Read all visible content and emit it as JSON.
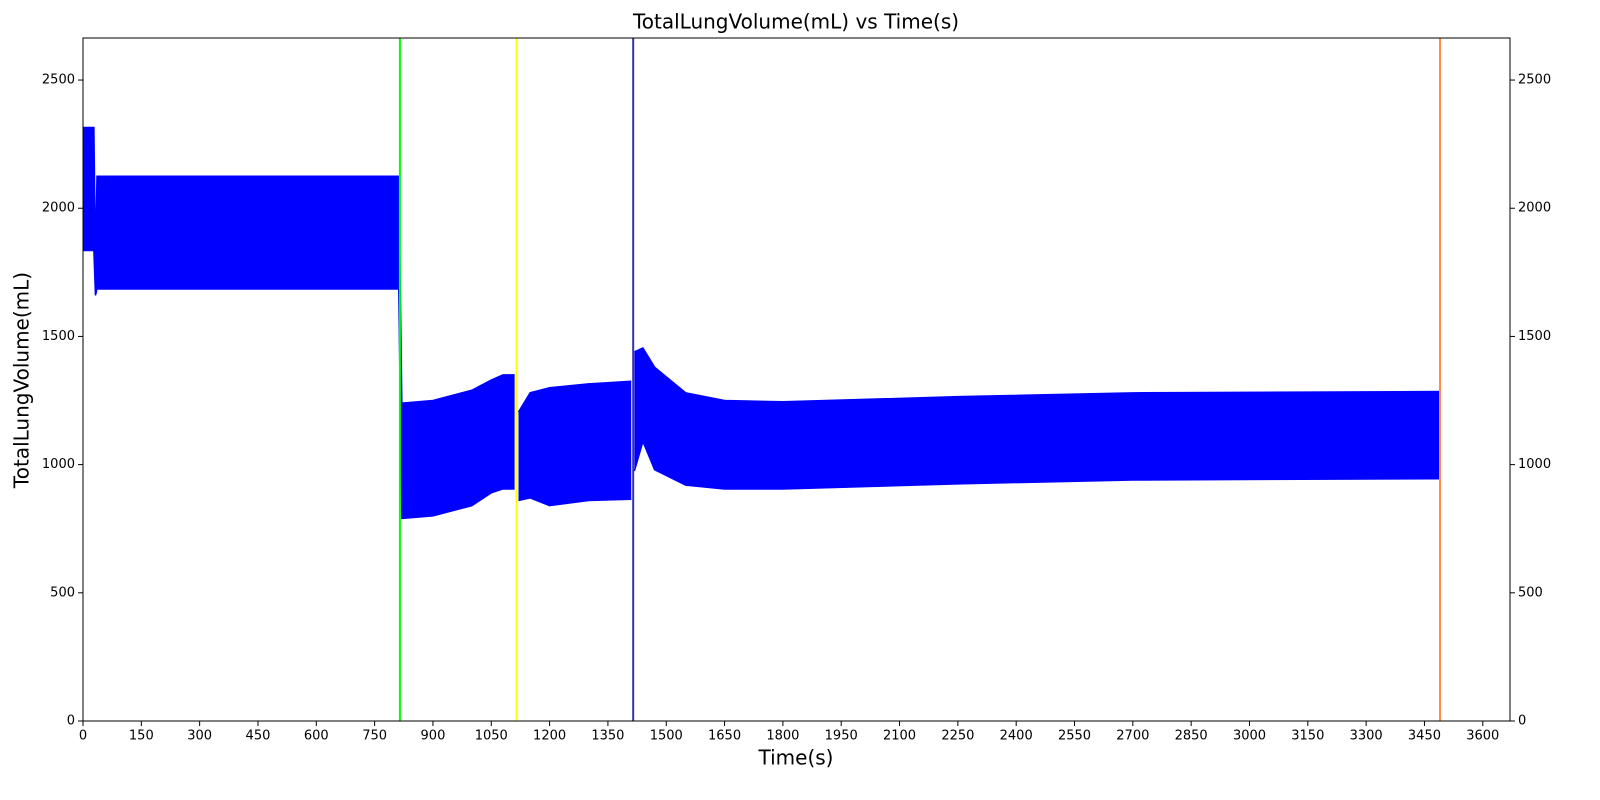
{
  "chart_data": {
    "type": "band",
    "title": "TotalLungVolume(mL) vs Time(s)",
    "x_label": "Time(s)",
    "y_label": "TotalLungVolume(mL)",
    "x": [
      0,
      28,
      32,
      36,
      812,
      820,
      900,
      1000,
      1050,
      1080,
      1110,
      1115,
      1120,
      1150,
      1200,
      1300,
      1410,
      1415,
      1418,
      1440,
      1470,
      1550,
      1650,
      1800,
      2250,
      2700,
      3490
    ],
    "series": [
      {
        "color": "#0000ff",
        "values": [
          2315,
          2315,
          1800,
          2125,
          2125,
          1240,
          1250,
          1290,
          1330,
          1350,
          1350,
          null,
          1205,
          1280,
          1300,
          1315,
          1325,
          null,
          1440,
          1455,
          1380,
          1280,
          1250,
          1245,
          1265,
          1280,
          1285
        ]
      },
      {
        "color": "#0000ff",
        "values": [
          1835,
          1835,
          1660,
          1685,
          1685,
          790,
          800,
          840,
          890,
          905,
          905,
          null,
          860,
          870,
          840,
          860,
          865,
          null,
          975,
          1090,
          980,
          920,
          905,
          905,
          925,
          940,
          945
        ]
      }
    ],
    "vlines": [
      {
        "x": 815,
        "color": "#00ff00"
      },
      {
        "x": 1115,
        "color": "#ffff00"
      },
      {
        "x": 1415,
        "color": "#3333aa"
      },
      {
        "x": 3490,
        "color": "#ff8c40"
      }
    ],
    "xlim": [
      0,
      3670
    ],
    "xticks": [
      0,
      150,
      300,
      450,
      600,
      750,
      900,
      1050,
      1200,
      1350,
      1500,
      1650,
      1800,
      1950,
      2100,
      2250,
      2400,
      2550,
      2700,
      2850,
      3000,
      3150,
      3300,
      3450,
      3600
    ],
    "ylim": [
      0,
      2664
    ],
    "yticks": [
      0,
      500,
      1000,
      1500,
      2000,
      2500
    ],
    "y2lim": [
      0,
      2664
    ],
    "y2ticks": [
      0,
      500,
      1000,
      1500,
      2000,
      2500
    ]
  }
}
